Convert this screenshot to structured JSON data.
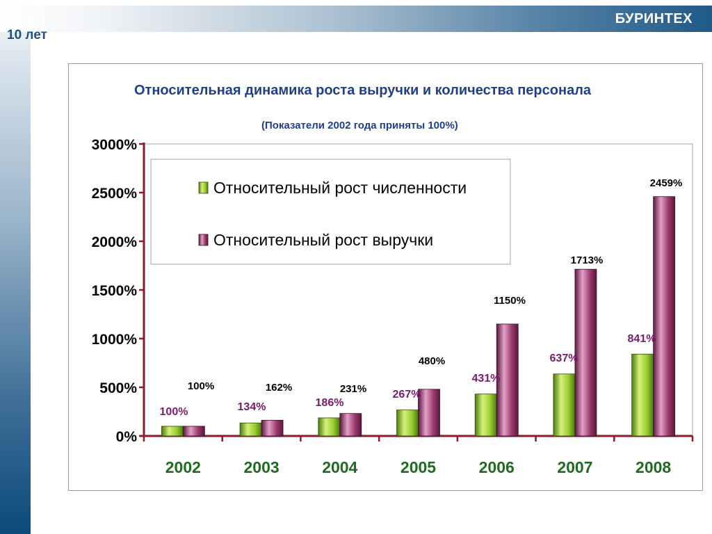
{
  "header": {
    "brand": "БУРИНТЕХ",
    "anniversary": "10 лет"
  },
  "colors": {
    "headcount": "#9acd32",
    "revenue": "#9b3a6e",
    "axis": "#8b1a2b",
    "year_labels": "#1f6b1f",
    "headcount_labels": "#7a1a6e",
    "revenue_labels": "#000000",
    "title": "#1f3f86"
  },
  "icons": {
    "logo": "buryntekh-logo-icon"
  },
  "chart_data": {
    "type": "bar",
    "title": "Относительная динамика роста выручки и количества персонала",
    "subtitle": "(Показатели 2002 года приняты 100%)",
    "categories": [
      "2002",
      "2003",
      "2004",
      "2005",
      "2006",
      "2007",
      "2008"
    ],
    "series": [
      {
        "name": "Относительный рост численности",
        "values": [
          100,
          134,
          186,
          267,
          431,
          637,
          841
        ],
        "labels": [
          "100%",
          "134%",
          "186%",
          "267%",
          "431%",
          "637%",
          "841%"
        ]
      },
      {
        "name": "Относительный рост выручки",
        "values": [
          100,
          162,
          231,
          480,
          1150,
          1713,
          2459
        ],
        "labels": [
          "100%",
          "162%",
          "231%",
          "480%",
          "1150%",
          "1713%",
          "2459%"
        ]
      }
    ],
    "ylim": [
      0,
      3000
    ],
    "yticks": [
      0,
      500,
      1000,
      1500,
      2000,
      2500,
      3000
    ],
    "ytick_labels": [
      "0%",
      "500%",
      "1000%",
      "1500%",
      "2000%",
      "2500%",
      "3000%"
    ],
    "legend_position": "top-left",
    "grid": false
  }
}
